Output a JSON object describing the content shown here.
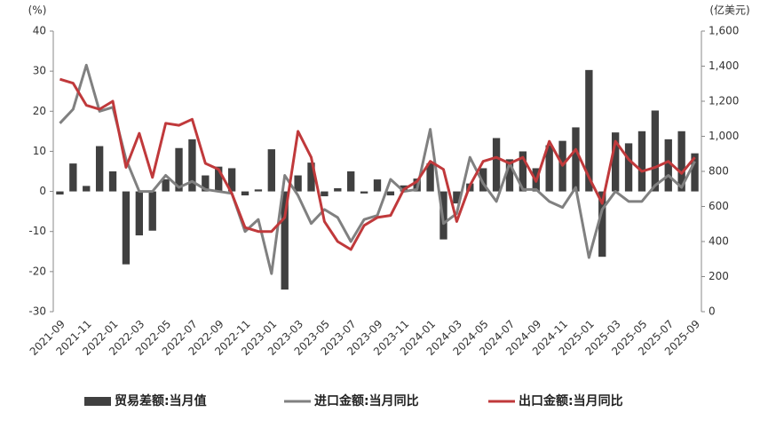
{
  "chart_data": {
    "type": "bar-line",
    "ylabel": "(%)",
    "y2label": "(亿美元)",
    "categories": [
      "2021-09",
      null,
      "2021-11",
      null,
      "2022-01",
      null,
      "2022-03",
      null,
      "2022-05",
      null,
      "2022-07",
      null,
      "2022-09",
      null,
      "2022-11",
      null,
      "2023-01",
      null,
      "2023-03",
      null,
      "2023-05",
      null,
      "2023-07",
      null,
      "2023-09",
      null,
      "2023-11",
      null,
      "2024-01",
      null,
      "2024-03",
      null,
      "2024-05",
      null,
      "2024-07",
      null,
      "2024-09",
      null,
      "2024-11",
      null,
      "2025-01",
      null,
      "2025-03",
      null,
      "2025-05",
      null,
      "2025-07",
      null,
      "2025-09"
    ],
    "ylim": [
      -30,
      40
    ],
    "yticks": [
      -30,
      -20,
      -10,
      0,
      10,
      20,
      30,
      40
    ],
    "y2lim": [
      0,
      1600
    ],
    "y2ticks": [
      0,
      200,
      400,
      600,
      800,
      {
        "value": 1000,
        "label": "1,000"
      },
      {
        "value": 1200,
        "label": "1,200"
      },
      {
        "value": 1400,
        "label": "1,400"
      },
      {
        "value": 1600,
        "label": "1,600"
      }
    ],
    "series": [
      {
        "name": "贸易差额:当月值",
        "type": "bar",
        "axis": "y2",
        "color": "#404040",
        "values": [
          668,
          845,
          717,
          944,
          800,
          270,
          435,
          462,
          755,
          933,
          983,
          777,
          827,
          818,
          663,
          697,
          926,
          126,
          777,
          850,
          658,
          704,
          800,
          674,
          754,
          663,
          720,
          759,
          846,
          412,
          617,
          731,
          818,
          990,
          869,
          914,
          818,
          949,
          974,
          1051,
          1378,
          313,
          1022,
          960,
          1029,
          1147,
          983,
          1029,
          903
        ]
      },
      {
        "name": "进口金额:当月同比",
        "type": "line",
        "color": "#808080",
        "values": [
          17,
          20.5,
          31.5,
          20,
          21,
          8,
          0,
          0,
          4,
          1,
          2.5,
          0.5,
          0,
          -0.5,
          -10,
          -7,
          -20.5,
          4,
          -1,
          -8,
          -4.5,
          -6.5,
          -12.5,
          -7,
          -6,
          3,
          0,
          0.5,
          15.5,
          -8,
          -5.5,
          8.5,
          2,
          -2.5,
          7,
          0.5,
          0.5,
          -2.5,
          -4,
          1,
          -16.5,
          -4.5,
          0,
          -2.5,
          -2.5,
          1.5,
          4,
          1,
          7.5
        ]
      },
      {
        "name": "出口金额:当月同比",
        "type": "line",
        "color": "#c0393b",
        "values": [
          28,
          27,
          21.5,
          20.5,
          22.5,
          6,
          14.5,
          3.5,
          17,
          16.5,
          18,
          7,
          5.5,
          -0.5,
          -9,
          -10,
          -10,
          -6.5,
          15,
          8.5,
          -7.5,
          -12.5,
          -14.5,
          -8.5,
          -6.5,
          -6,
          0.5,
          2.5,
          7.5,
          5.5,
          -7.5,
          1.5,
          7.5,
          8.5,
          7,
          8.5,
          2.5,
          12.5,
          6.5,
          10.5,
          3.5,
          -3,
          12.5,
          8,
          5,
          6,
          7.5,
          4.5,
          8.5
        ]
      }
    ]
  }
}
